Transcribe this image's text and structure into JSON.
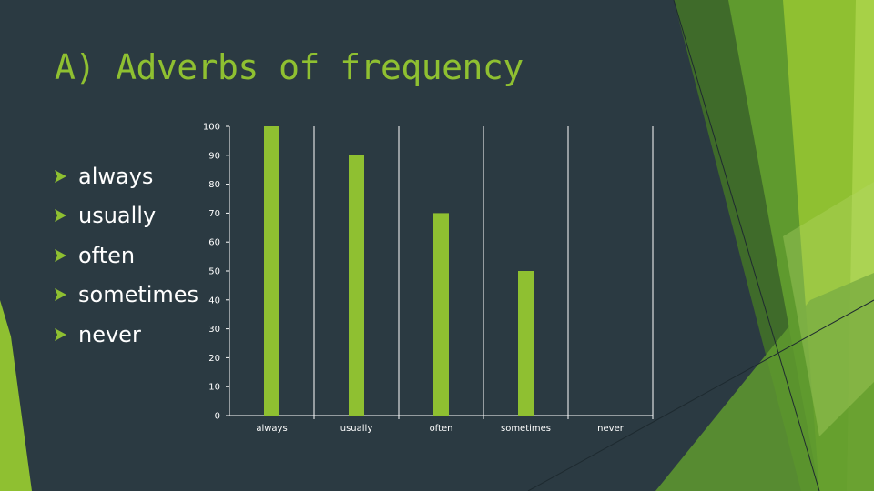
{
  "slide": {
    "title": "A) Adverbs of frequency",
    "bullets": [
      "always",
      "usually",
      "often",
      "sometimes",
      "never"
    ]
  },
  "colors": {
    "background": "#2b3a42",
    "accent": "#8fc031",
    "bar": "#8fc031",
    "text": "#ffffff"
  },
  "chart_data": {
    "type": "bar",
    "title": "",
    "xlabel": "",
    "ylabel": "",
    "categories": [
      "always",
      "usually",
      "often",
      "sometimes",
      "never"
    ],
    "values": [
      100,
      90,
      70,
      50,
      0
    ],
    "ylim": [
      0,
      100
    ],
    "yticks": [
      0,
      10,
      20,
      30,
      40,
      50,
      60,
      70,
      80,
      90,
      100
    ],
    "grid": "vertical category separators",
    "legend": "none"
  }
}
